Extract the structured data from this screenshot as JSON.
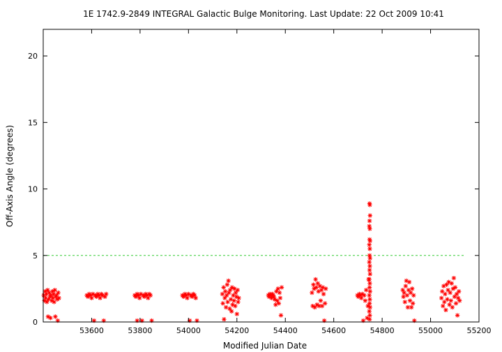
{
  "chart_data": {
    "type": "scatter",
    "title": "1E 1742.9-2849    INTEGRAL Galactic Bulge Monitoring.  Last Update: 22 Oct 2009 10:41",
    "xlabel": "Modified Julian Date",
    "ylabel": "Off-Axis Angle (degrees)",
    "xlim": [
      53400,
      55200
    ],
    "ylim": [
      0,
      22
    ],
    "xticks": [
      53600,
      53800,
      54000,
      54200,
      54400,
      54600,
      54800,
      55000,
      55200
    ],
    "yticks": [
      0,
      5,
      10,
      15,
      20
    ],
    "grid": false,
    "reference_line": {
      "y": 5,
      "color": "#33cc33",
      "style": "dashed"
    },
    "marker": {
      "symbol": "asterisk",
      "color": "#ff0000"
    },
    "series": [
      {
        "points": [
          [
            53402,
            2.0
          ],
          [
            53405,
            1.6
          ],
          [
            53408,
            2.3
          ],
          [
            53410,
            1.8
          ],
          [
            53413,
            2.1
          ],
          [
            53415,
            1.5
          ],
          [
            53418,
            2.4
          ],
          [
            53420,
            0.4
          ],
          [
            53422,
            1.7
          ],
          [
            53425,
            2.2
          ],
          [
            53428,
            1.9
          ],
          [
            53430,
            0.3
          ],
          [
            53432,
            2.0
          ],
          [
            53435,
            1.6
          ],
          [
            53438,
            2.3
          ],
          [
            53440,
            1.8
          ],
          [
            53443,
            2.1
          ],
          [
            53445,
            1.5
          ],
          [
            53448,
            2.4
          ],
          [
            53450,
            0.4
          ],
          [
            53452,
            1.9
          ],
          [
            53455,
            2.0
          ],
          [
            53458,
            1.7
          ],
          [
            53460,
            0.1
          ],
          [
            53462,
            2.2
          ],
          [
            53465,
            1.8
          ],
          [
            53580,
            2.0
          ],
          [
            53585,
            1.9
          ],
          [
            53590,
            2.1
          ],
          [
            53595,
            2.0
          ],
          [
            53600,
            1.8
          ],
          [
            53605,
            2.1
          ],
          [
            53610,
            0.1
          ],
          [
            53615,
            2.0
          ],
          [
            53620,
            1.9
          ],
          [
            53625,
            2.1
          ],
          [
            53630,
            2.0
          ],
          [
            53635,
            1.8
          ],
          [
            53640,
            2.1
          ],
          [
            53645,
            2.0
          ],
          [
            53650,
            0.1
          ],
          [
            53655,
            1.9
          ],
          [
            53660,
            2.1
          ],
          [
            53778,
            2.0
          ],
          [
            53783,
            1.9
          ],
          [
            53788,
            2.1
          ],
          [
            53793,
            2.0
          ],
          [
            53798,
            1.8
          ],
          [
            53803,
            2.1
          ],
          [
            53808,
            0.1
          ],
          [
            53813,
            2.0
          ],
          [
            53818,
            1.9
          ],
          [
            53823,
            2.1
          ],
          [
            53828,
            2.0
          ],
          [
            53833,
            1.8
          ],
          [
            53838,
            2.1
          ],
          [
            53843,
            2.0
          ],
          [
            53848,
            0.1
          ],
          [
            53788,
            0.1
          ],
          [
            53975,
            2.0
          ],
          [
            53980,
            1.9
          ],
          [
            53985,
            2.1
          ],
          [
            53990,
            2.0
          ],
          [
            53995,
            1.8
          ],
          [
            54000,
            2.1
          ],
          [
            54005,
            0.1
          ],
          [
            54010,
            2.0
          ],
          [
            54015,
            1.9
          ],
          [
            54020,
            2.1
          ],
          [
            54025,
            2.0
          ],
          [
            54030,
            1.8
          ],
          [
            54035,
            0.1
          ],
          [
            54140,
            2.1
          ],
          [
            54142,
            1.4
          ],
          [
            54145,
            2.6
          ],
          [
            54147,
            0.2
          ],
          [
            54150,
            1.8
          ],
          [
            54152,
            2.3
          ],
          [
            54155,
            1.1
          ],
          [
            54158,
            2.0
          ],
          [
            54160,
            2.8
          ],
          [
            54162,
            1.5
          ],
          [
            54165,
            3.1
          ],
          [
            54167,
            2.2
          ],
          [
            54170,
            1.0
          ],
          [
            54172,
            2.4
          ],
          [
            54175,
            1.7
          ],
          [
            54178,
            0.8
          ],
          [
            54180,
            2.6
          ],
          [
            54182,
            1.3
          ],
          [
            54185,
            2.0
          ],
          [
            54188,
            1.6
          ],
          [
            54190,
            2.5
          ],
          [
            54193,
            1.2
          ],
          [
            54195,
            2.2
          ],
          [
            54198,
            1.9
          ],
          [
            54200,
            0.6
          ],
          [
            54203,
            2.4
          ],
          [
            54205,
            1.5
          ],
          [
            54208,
            1.8
          ],
          [
            54330,
            2.0
          ],
          [
            54333,
            1.9
          ],
          [
            54336,
            2.1
          ],
          [
            54340,
            2.0
          ],
          [
            54343,
            1.8
          ],
          [
            54346,
            2.1
          ],
          [
            54350,
            2.0
          ],
          [
            54353,
            1.9
          ],
          [
            54356,
            1.7
          ],
          [
            54360,
            1.3
          ],
          [
            54363,
            2.3
          ],
          [
            54366,
            1.6
          ],
          [
            54370,
            2.5
          ],
          [
            54373,
            1.4
          ],
          [
            54376,
            2.2
          ],
          [
            54379,
            1.8
          ],
          [
            54382,
            0.5
          ],
          [
            54385,
            2.6
          ],
          [
            54510,
            2.2
          ],
          [
            54513,
            1.2
          ],
          [
            54516,
            2.8
          ],
          [
            54519,
            2.5
          ],
          [
            54522,
            1.1
          ],
          [
            54525,
            3.2
          ],
          [
            54528,
            2.6
          ],
          [
            54531,
            1.3
          ],
          [
            54534,
            2.9
          ],
          [
            54537,
            2.3
          ],
          [
            54540,
            1.2
          ],
          [
            54543,
            2.7
          ],
          [
            54546,
            1.6
          ],
          [
            54549,
            2.4
          ],
          [
            54552,
            1.2
          ],
          [
            54555,
            2.6
          ],
          [
            54558,
            2.1
          ],
          [
            54561,
            0.1
          ],
          [
            54564,
            1.4
          ],
          [
            54567,
            2.5
          ],
          [
            54698,
            2.0
          ],
          [
            54702,
            1.9
          ],
          [
            54706,
            2.1
          ],
          [
            54710,
            2.0
          ],
          [
            54714,
            1.8
          ],
          [
            54718,
            2.1
          ],
          [
            54722,
            0.1
          ],
          [
            54726,
            2.0
          ],
          [
            54730,
            1.6
          ],
          [
            54734,
            2.4
          ],
          [
            54738,
            0.3
          ],
          [
            54741,
            1.2
          ],
          [
            54744,
            3.2
          ],
          [
            54748,
            8.9
          ],
          [
            54749,
            8.8
          ],
          [
            54750,
            8.0
          ],
          [
            54748,
            7.6
          ],
          [
            54747,
            7.2
          ],
          [
            54749,
            7.0
          ],
          [
            54748,
            6.2
          ],
          [
            54750,
            6.1
          ],
          [
            54747,
            5.8
          ],
          [
            54749,
            5.5
          ],
          [
            54748,
            5.0
          ],
          [
            54750,
            4.8
          ],
          [
            54747,
            4.5
          ],
          [
            54749,
            4.2
          ],
          [
            54748,
            3.9
          ],
          [
            54750,
            3.6
          ],
          [
            54747,
            3.2
          ],
          [
            54749,
            2.9
          ],
          [
            54748,
            2.6
          ],
          [
            54750,
            2.3
          ],
          [
            54747,
            2.0
          ],
          [
            54749,
            1.7
          ],
          [
            54748,
            1.4
          ],
          [
            54750,
            1.1
          ],
          [
            54747,
            0.8
          ],
          [
            54749,
            0.5
          ],
          [
            54748,
            0.2
          ],
          [
            54885,
            2.4
          ],
          [
            54888,
            1.9
          ],
          [
            54891,
            2.2
          ],
          [
            54894,
            1.5
          ],
          [
            54897,
            2.7
          ],
          [
            54900,
            3.1
          ],
          [
            54903,
            2.0
          ],
          [
            54906,
            1.1
          ],
          [
            54909,
            2.4
          ],
          [
            54912,
            3.0
          ],
          [
            54915,
            1.6
          ],
          [
            54918,
            2.2
          ],
          [
            54921,
            1.1
          ],
          [
            54924,
            2.5
          ],
          [
            54927,
            1.4
          ],
          [
            54930,
            2.0
          ],
          [
            54933,
            0.1
          ],
          [
            55045,
            1.8
          ],
          [
            55048,
            2.3
          ],
          [
            55051,
            1.2
          ],
          [
            55054,
            2.7
          ],
          [
            55057,
            1.5
          ],
          [
            55060,
            2.1
          ],
          [
            55063,
            0.9
          ],
          [
            55066,
            2.8
          ],
          [
            55069,
            1.7
          ],
          [
            55072,
            2.4
          ],
          [
            55075,
            3.0
          ],
          [
            55078,
            1.3
          ],
          [
            55081,
            2.2
          ],
          [
            55084,
            1.6
          ],
          [
            55087,
            2.9
          ],
          [
            55090,
            1.1
          ],
          [
            55093,
            2.5
          ],
          [
            55096,
            3.3
          ],
          [
            55099,
            1.9
          ],
          [
            55102,
            2.6
          ],
          [
            55105,
            1.4
          ],
          [
            55108,
            2.1
          ],
          [
            55111,
            0.5
          ],
          [
            55114,
            1.8
          ],
          [
            55117,
            2.3
          ],
          [
            55120,
            1.6
          ]
        ]
      }
    ]
  }
}
